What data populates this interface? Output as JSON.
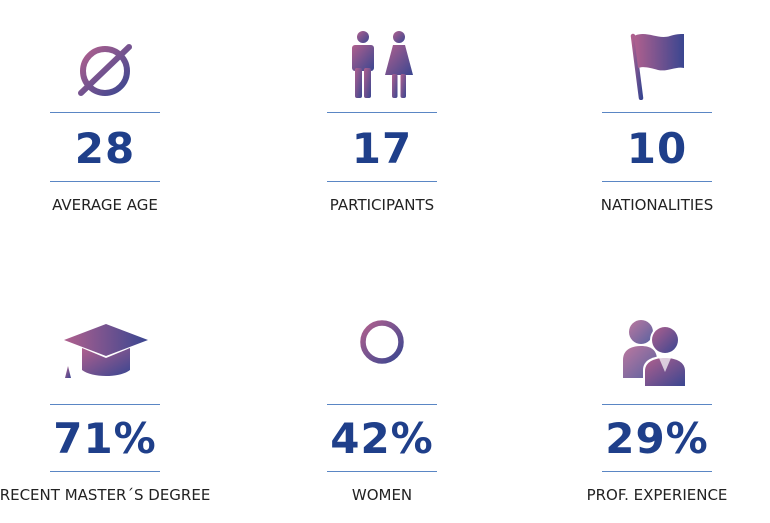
{
  "colors": {
    "gradient_start": "#b0608e",
    "gradient_end": "#3a4690",
    "number": "#1f3f8a",
    "rule": "#5a86c4",
    "label": "#222222"
  },
  "stats": [
    {
      "icon": "empty-set-icon",
      "value": "28",
      "label": "AVERAGE AGE"
    },
    {
      "icon": "man-woman-icon",
      "value": "17",
      "label": "PARTICIPANTS"
    },
    {
      "icon": "flag-icon",
      "value": "10",
      "label": "NATIONALITIES"
    },
    {
      "icon": "graduation-cap-icon",
      "value": "71%",
      "label": "RECENT MASTER´S DEGREE"
    },
    {
      "icon": "female-symbol-icon",
      "value": "42%",
      "label": "WOMEN"
    },
    {
      "icon": "user-group-icon",
      "value": "29%",
      "label": "PROF. EXPERIENCE"
    }
  ]
}
